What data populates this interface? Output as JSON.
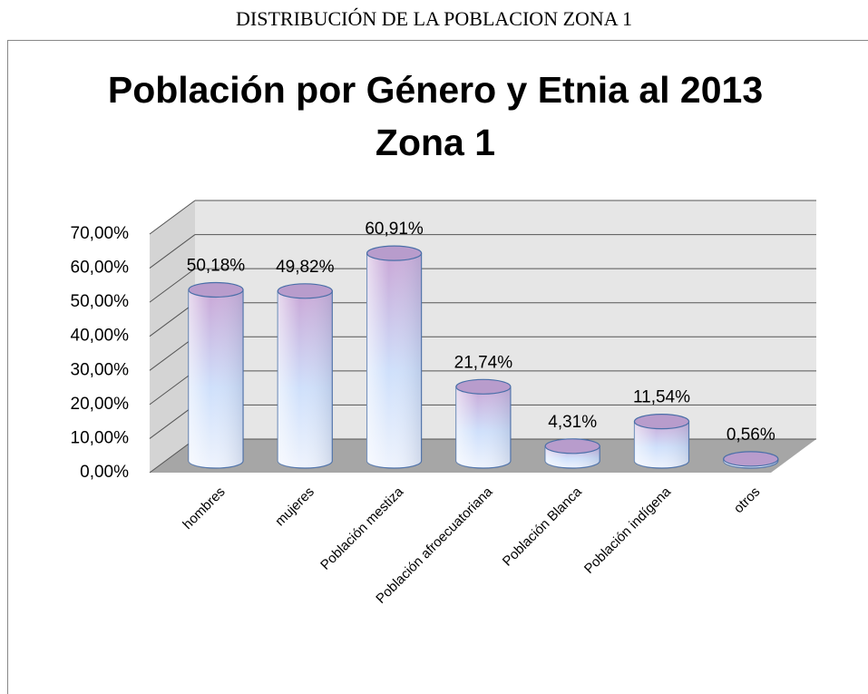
{
  "heading": "DISTRIBUCIÓN DE LA POBLACION ZONA 1",
  "chart_data": {
    "type": "bar",
    "title": "Población por Género y Etnia al 2013 Zona 1",
    "categories": [
      "hombres",
      "mujeres",
      "Población mestiza",
      "Población afroecuatoriana",
      "Población Blanca",
      "Población indígena",
      "otros"
    ],
    "values": [
      50.18,
      49.82,
      60.91,
      21.74,
      4.31,
      11.54,
      0.56
    ],
    "value_labels": [
      "50,18%",
      "49,82%",
      "60,91%",
      "21,74%",
      "4,31%",
      "11,54%",
      "0,56%"
    ],
    "ylim": [
      0,
      70
    ],
    "yticks": [
      {
        "value": 0,
        "label": "0,00%"
      },
      {
        "value": 10,
        "label": "10,00%"
      },
      {
        "value": 20,
        "label": "20,00%"
      },
      {
        "value": 30,
        "label": "30,00%"
      },
      {
        "value": 40,
        "label": "40,00%"
      },
      {
        "value": 50,
        "label": "50,00%"
      },
      {
        "value": 60,
        "label": "60,00%"
      },
      {
        "value": 70,
        "label": "70,00%"
      }
    ],
    "grid": true
  }
}
